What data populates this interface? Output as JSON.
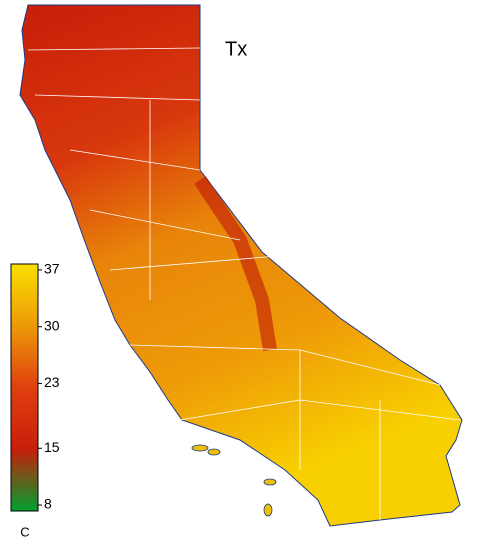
{
  "title": "Tx",
  "colorbar": {
    "range": [
      8,
      37
    ],
    "ticks": [
      37,
      30,
      23,
      15,
      8
    ],
    "unit": "C"
  }
}
